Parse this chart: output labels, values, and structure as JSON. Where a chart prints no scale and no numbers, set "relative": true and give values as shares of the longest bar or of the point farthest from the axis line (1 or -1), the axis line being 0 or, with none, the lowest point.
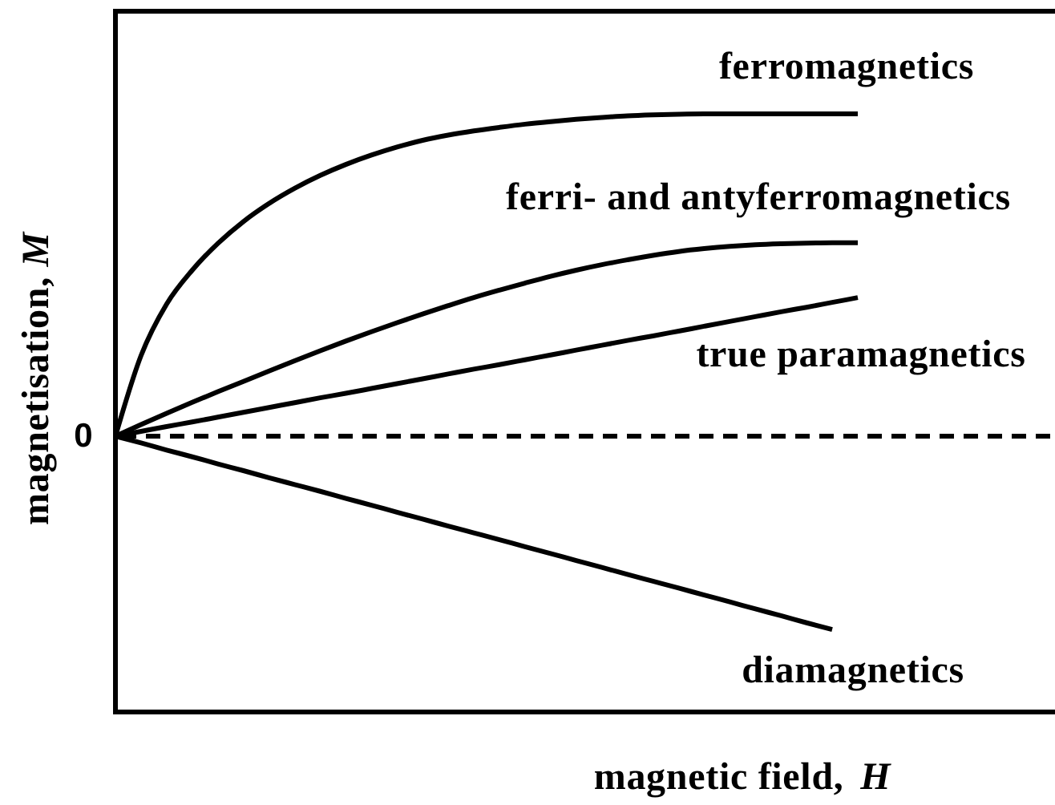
{
  "chart_data": {
    "type": "line",
    "relative": true,
    "xlabel": "magnetic field, H",
    "ylabel": "magnetisation, M",
    "categories": [
      null,
      null,
      null,
      null,
      null,
      null,
      null,
      null,
      null,
      null,
      null,
      null,
      null,
      null,
      null,
      null,
      null,
      null,
      null,
      null,
      null,
      null,
      null,
      null,
      null,
      null,
      null,
      null,
      null,
      null
    ],
    "series": [
      {
        "name": "ferromagnetics",
        "color": "#000000",
        "values": [
          0,
          0.25,
          0.41,
          0.515,
          0.598,
          0.666,
          0.722,
          0.769,
          0.809,
          0.843,
          0.872,
          0.897,
          0.918,
          0.934,
          0.947,
          0.958,
          0.968,
          0.976,
          0.983,
          0.989,
          0.994,
          0.997,
          0.999,
          1,
          1,
          1,
          1,
          1,
          1,
          1
        ]
      },
      {
        "name": "ferri- and antyferromagnetics",
        "color": "#000000",
        "values": [
          0,
          0.036,
          0.071,
          0.105,
          0.138,
          0.17,
          0.202,
          0.234,
          0.265,
          0.295,
          0.324,
          0.352,
          0.379,
          0.405,
          0.43,
          0.453,
          0.475,
          0.496,
          0.515,
          0.532,
          0.547,
          0.561,
          0.573,
          0.582,
          0.589,
          0.594,
          0.597,
          0.599,
          0.6,
          0.6
        ]
      },
      {
        "name": "true paramagnetics",
        "color": "#000000",
        "values": [
          0,
          0.015,
          0.03,
          0.044,
          0.059,
          0.074,
          0.089,
          0.104,
          0.119,
          0.133,
          0.148,
          0.163,
          0.178,
          0.193,
          0.208,
          0.222,
          0.237,
          0.252,
          0.267,
          0.282,
          0.297,
          0.311,
          0.326,
          0.341,
          0.356,
          0.371,
          0.386,
          0.4,
          0.415,
          0.43
        ]
      },
      {
        "name": "diamagnetics",
        "color": "#000000",
        "values": [
          0,
          -0.021,
          -0.043,
          -0.064,
          -0.086,
          -0.107,
          -0.129,
          -0.15,
          -0.171,
          -0.193,
          -0.214,
          -0.236,
          -0.257,
          -0.279,
          -0.3,
          -0.321,
          -0.343,
          -0.364,
          -0.386,
          -0.407,
          -0.429,
          -0.45,
          -0.471,
          -0.493,
          -0.514,
          -0.536,
          -0.557,
          -0.579,
          -0.6,
          null
        ]
      }
    ],
    "ref_lines": [
      {
        "axis": "y",
        "value": 0,
        "label": "0",
        "color": "#000000",
        "line_style": "dashed"
      }
    ]
  }
}
